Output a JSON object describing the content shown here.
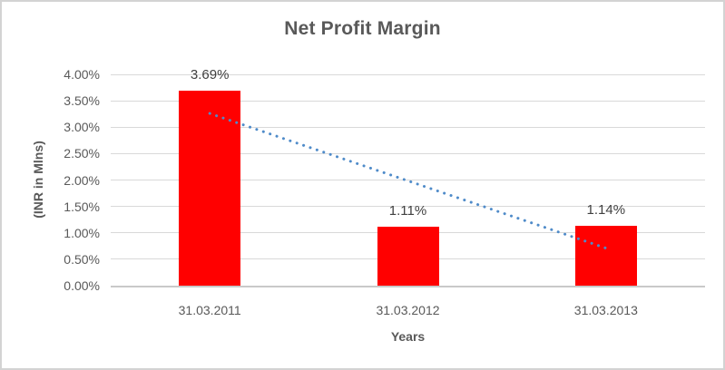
{
  "chart_data": {
    "type": "bar",
    "title": "Net Profit Margin",
    "ylabel": "(INR in Mlns)",
    "xlabel": "Years",
    "categories": [
      "31.03.2011",
      "31.03.2012",
      "31.03.2013"
    ],
    "values": [
      3.69,
      1.11,
      1.14
    ],
    "data_labels": [
      "3.69%",
      "1.11%",
      "1.14%"
    ],
    "ylim": [
      0,
      4
    ],
    "ytick_step": 0.5,
    "ytick_labels": [
      "0.00%",
      "0.50%",
      "1.00%",
      "1.50%",
      "2.00%",
      "2.50%",
      "3.00%",
      "3.50%",
      "4.00%"
    ],
    "grid": true,
    "legend": "none",
    "trendline": {
      "type": "linear",
      "style": "dotted",
      "start_value": 3.26,
      "end_value": 0.71
    },
    "colors": {
      "bar": "#FF0000",
      "trendline": "#4F8BC9",
      "title_text": "#595959",
      "axis_text": "#595959",
      "data_label_text": "#404040",
      "gridline": "#D9D9D9",
      "axis_line": "#C9C9C9",
      "border": "#D3D3D3",
      "background": "#FFFFFF"
    }
  }
}
